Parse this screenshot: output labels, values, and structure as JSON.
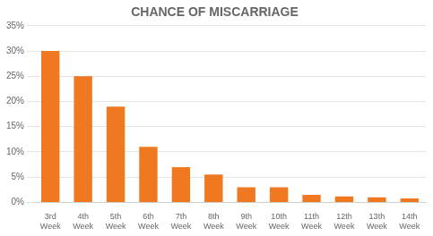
{
  "chart_data": {
    "type": "bar",
    "title": "CHANCE OF MISCARRIAGE",
    "categories": [
      "3rd\nWeek",
      "4th\nWeek",
      "5th\nWeek",
      "6th\nWeek",
      "7th\nWeek",
      "8th\nWeek",
      "9th\nWeek",
      "10th\nWeek",
      "11th\nWeek",
      "12th\nWeek",
      "13th\nWeek",
      "14th\nWeek"
    ],
    "values": [
      30,
      25,
      19,
      11,
      7,
      5.5,
      3,
      3,
      1.5,
      1.2,
      1.0,
      0.8
    ],
    "color": "#F07820",
    "ylim": [
      0,
      35
    ],
    "yticks": [
      {
        "value": 0,
        "label": "0%"
      },
      {
        "value": 5,
        "label": "5%"
      },
      {
        "value": 10,
        "label": "10%"
      },
      {
        "value": 15,
        "label": "15%"
      },
      {
        "value": 20,
        "label": "20%"
      },
      {
        "value": 25,
        "label": "25%"
      },
      {
        "value": 30,
        "label": "30%"
      },
      {
        "value": 35,
        "label": "35%"
      }
    ],
    "grid": true
  }
}
